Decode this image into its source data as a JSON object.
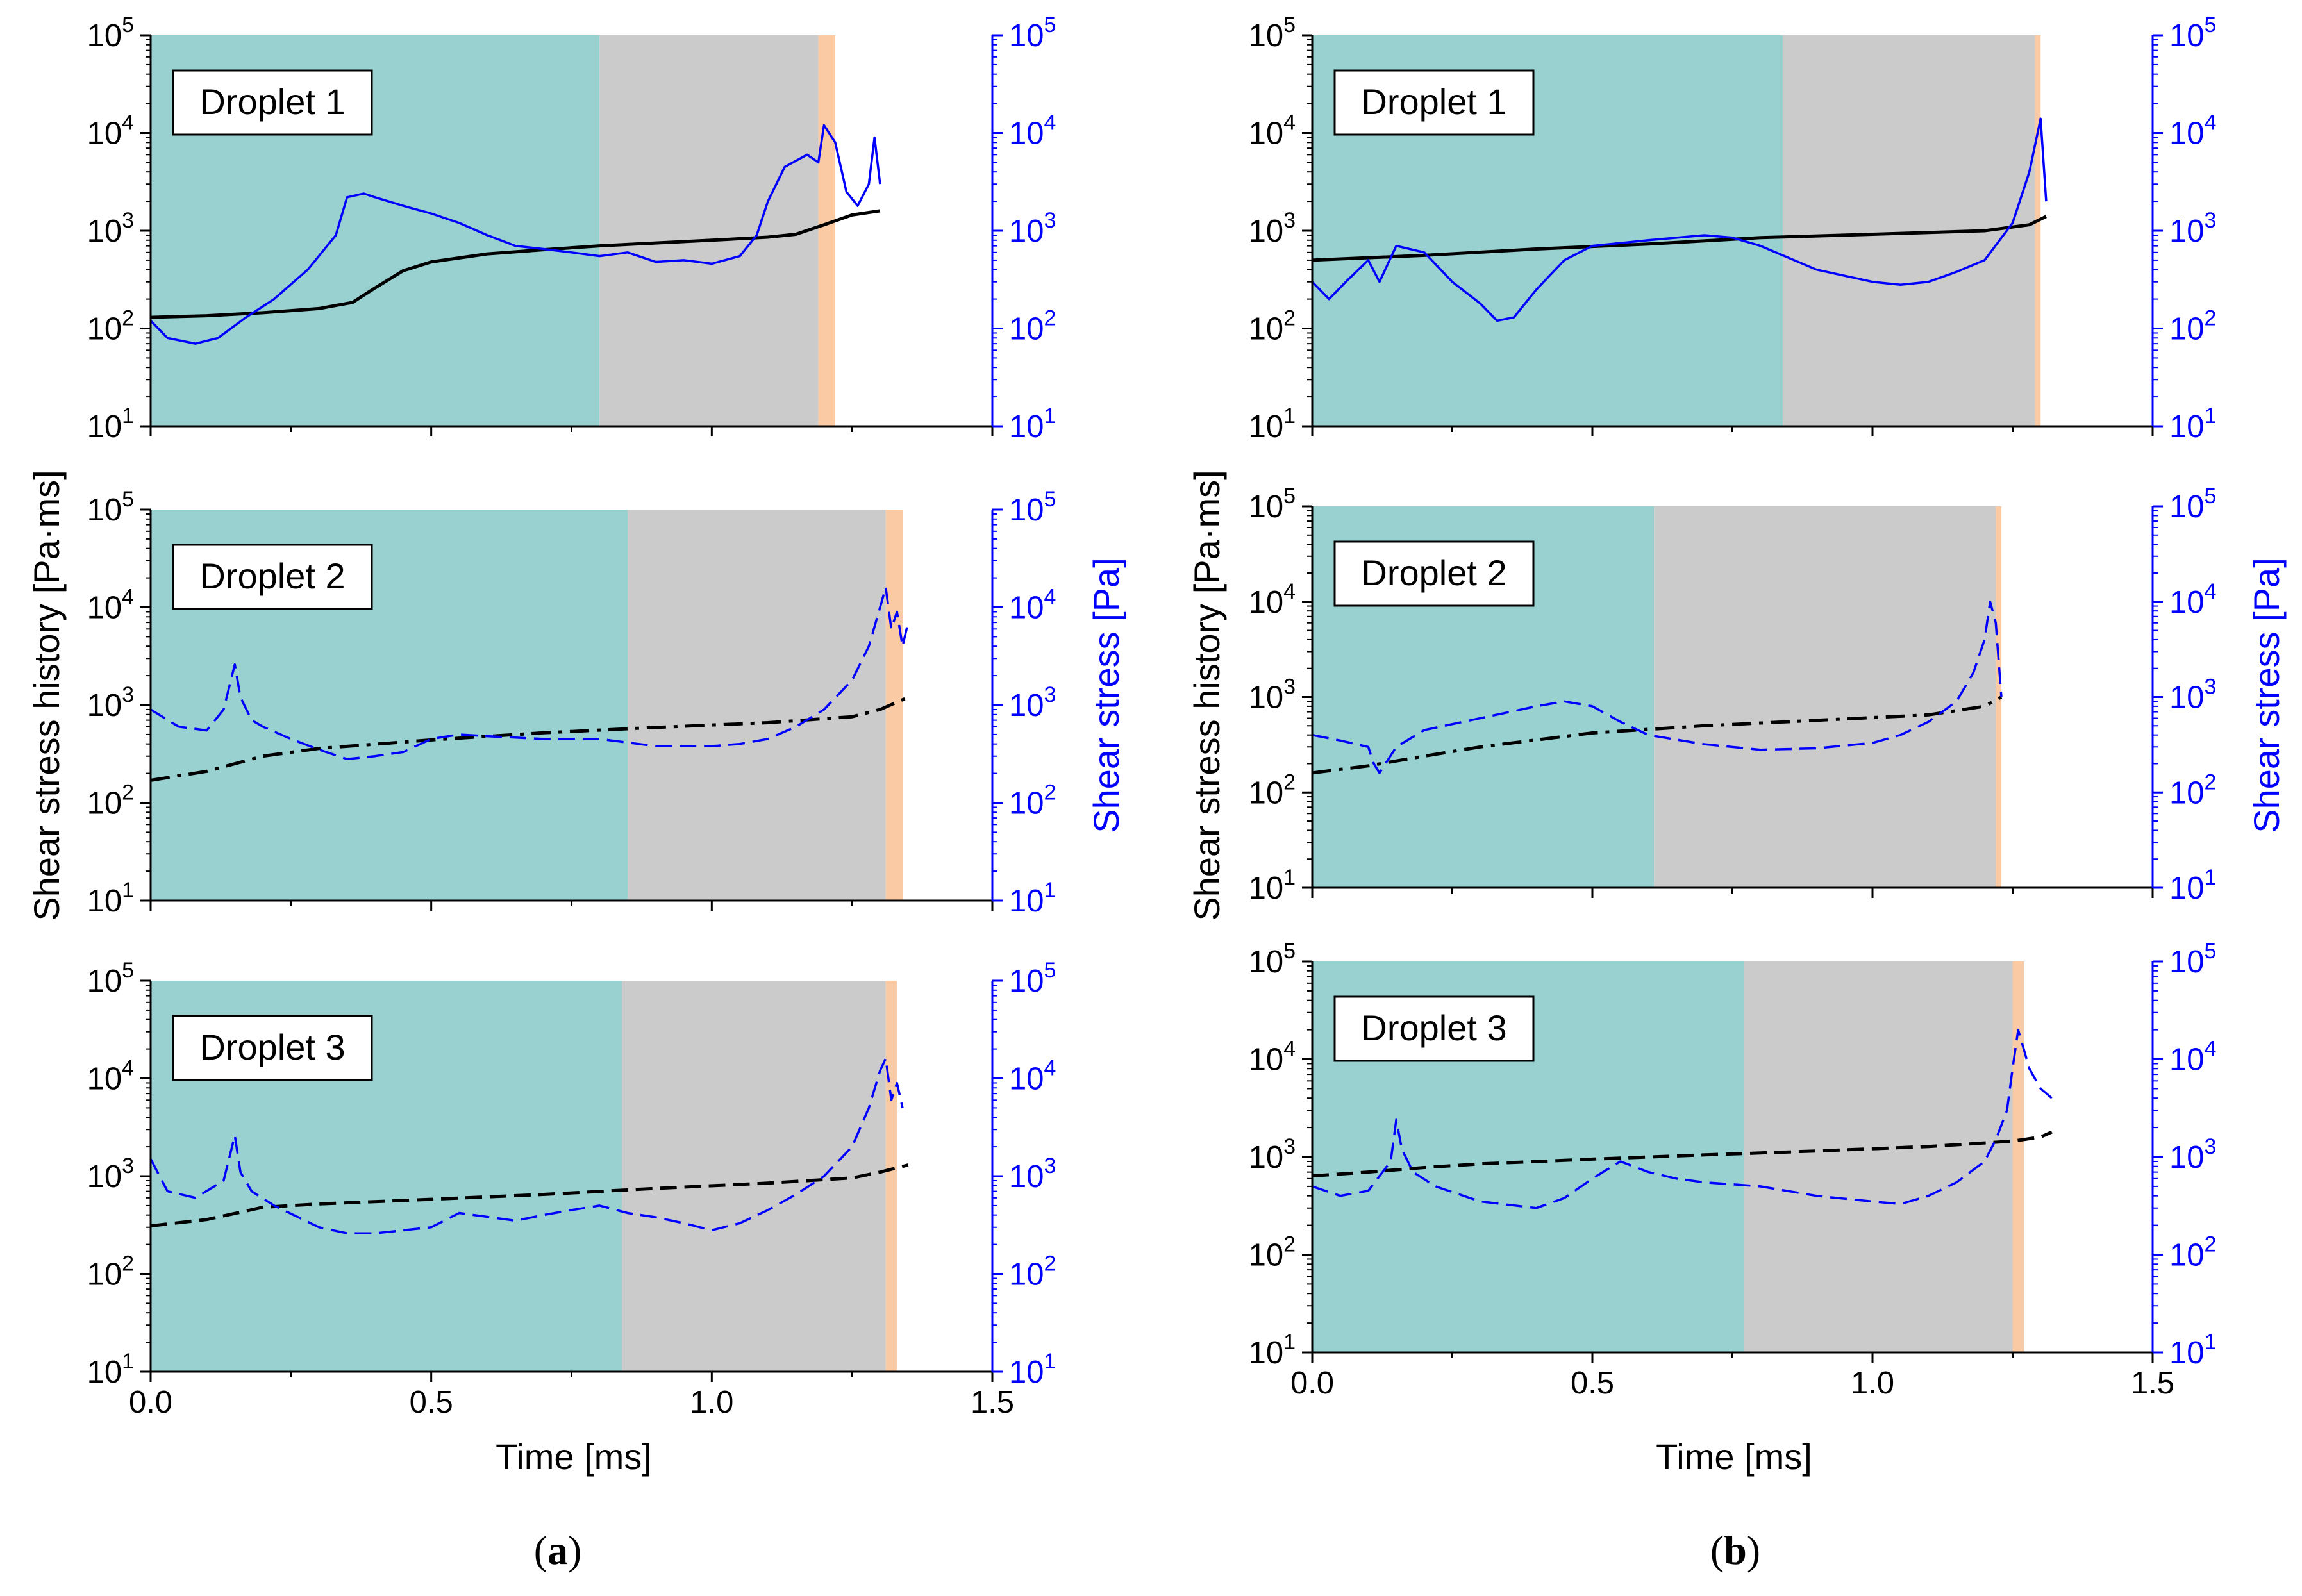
{
  "figure": {
    "panels": [
      "(a)",
      "(b)"
    ],
    "panel_labels": [
      {
        "open": "(",
        "letter": "a",
        "close": ")"
      },
      {
        "open": "(",
        "letter": "b",
        "close": ")"
      }
    ],
    "left_axis_title": "Shear stress history [Pa·ms]",
    "right_axis_title": "Shear stress [Pa]",
    "x_axis_title": "Time [ms]",
    "colors": {
      "teal": "#99d0d0",
      "gray": "#cbcbcb",
      "orange": "#f9caa4",
      "history": "#000000",
      "stress": "#0000ff"
    }
  },
  "chart_data": [
    {
      "type": "line",
      "panel": "a",
      "subplot": 1,
      "label": "Droplet 1",
      "xlim": [
        0,
        1.5
      ],
      "ylim": [
        10,
        100000
      ],
      "yscale": "log",
      "xticks": [
        "0.0",
        "0.5",
        "1.0",
        "1.5"
      ],
      "yticks": [
        10,
        100,
        1000,
        10000,
        100000
      ],
      "regions": [
        {
          "color": "teal",
          "from": 0,
          "to": 0.8
        },
        {
          "color": "gray",
          "from": 0.8,
          "to": 1.19
        },
        {
          "color": "orange",
          "from": 1.19,
          "to": 1.22
        }
      ],
      "series": [
        {
          "name": "Shear stress history",
          "axis": "left",
          "style": "solid",
          "color": "history",
          "x": [
            0,
            0.1,
            0.2,
            0.3,
            0.36,
            0.4,
            0.45,
            0.5,
            0.6,
            0.7,
            0.8,
            0.9,
            1.0,
            1.1,
            1.15,
            1.2,
            1.25,
            1.3
          ],
          "y": [
            130,
            135,
            145,
            160,
            185,
            260,
            390,
            480,
            580,
            640,
            700,
            750,
            800,
            860,
            920,
            1150,
            1450,
            1600
          ]
        },
        {
          "name": "Shear stress",
          "axis": "right",
          "style": "solid",
          "color": "stress",
          "x": [
            0,
            0.03,
            0.08,
            0.12,
            0.17,
            0.22,
            0.28,
            0.33,
            0.35,
            0.38,
            0.4,
            0.45,
            0.5,
            0.55,
            0.6,
            0.65,
            0.7,
            0.75,
            0.8,
            0.85,
            0.9,
            0.95,
            1.0,
            1.05,
            1.08,
            1.1,
            1.13,
            1.17,
            1.19,
            1.2,
            1.22,
            1.24,
            1.26,
            1.28,
            1.29,
            1.3
          ],
          "y": [
            120,
            80,
            70,
            80,
            130,
            200,
            400,
            900,
            2200,
            2400,
            2200,
            1800,
            1500,
            1200,
            900,
            700,
            650,
            600,
            550,
            600,
            480,
            500,
            460,
            550,
            900,
            2000,
            4500,
            6000,
            5000,
            12000,
            8000,
            2500,
            1800,
            3000,
            9000,
            3000
          ]
        }
      ]
    },
    {
      "type": "line",
      "panel": "a",
      "subplot": 2,
      "label": "Droplet 2",
      "xlim": [
        0,
        1.5
      ],
      "ylim": [
        10,
        100000
      ],
      "yscale": "log",
      "xticks": [
        "0.0",
        "0.5",
        "1.0",
        "1.5"
      ],
      "yticks": [
        10,
        100,
        1000,
        10000,
        100000
      ],
      "regions": [
        {
          "color": "teal",
          "from": 0,
          "to": 0.85
        },
        {
          "color": "gray",
          "from": 0.85,
          "to": 1.31
        },
        {
          "color": "orange",
          "from": 1.31,
          "to": 1.34
        }
      ],
      "series": [
        {
          "name": "Shear stress history",
          "axis": "left",
          "style": "dashdot",
          "color": "history",
          "x": [
            0,
            0.1,
            0.2,
            0.3,
            0.5,
            0.7,
            0.9,
            1.1,
            1.25,
            1.3,
            1.35
          ],
          "y": [
            170,
            210,
            300,
            360,
            440,
            520,
            590,
            660,
            760,
            900,
            1200
          ]
        },
        {
          "name": "Shear stress",
          "axis": "right",
          "style": "dashed",
          "color": "stress",
          "x": [
            0,
            0.05,
            0.1,
            0.13,
            0.15,
            0.16,
            0.18,
            0.2,
            0.25,
            0.3,
            0.35,
            0.4,
            0.45,
            0.5,
            0.55,
            0.6,
            0.7,
            0.8,
            0.9,
            1.0,
            1.05,
            1.1,
            1.15,
            1.2,
            1.25,
            1.28,
            1.3,
            1.31,
            1.32,
            1.33,
            1.34,
            1.35
          ],
          "y": [
            900,
            600,
            550,
            900,
            2600,
            1200,
            700,
            600,
            450,
            350,
            280,
            300,
            330,
            450,
            500,
            480,
            450,
            450,
            380,
            380,
            400,
            450,
            600,
            900,
            1800,
            4000,
            10000,
            16000,
            6000,
            9000,
            4000,
            7000
          ]
        }
      ]
    },
    {
      "type": "line",
      "panel": "a",
      "subplot": 3,
      "label": "Droplet 3",
      "xlim": [
        0,
        1.5
      ],
      "ylim": [
        10,
        100000
      ],
      "yscale": "log",
      "xticks": [
        "0.0",
        "0.5",
        "1.0",
        "1.5"
      ],
      "yticks": [
        10,
        100,
        1000,
        10000,
        100000
      ],
      "regions": [
        {
          "color": "teal",
          "from": 0,
          "to": 0.84
        },
        {
          "color": "gray",
          "from": 0.84,
          "to": 1.31
        },
        {
          "color": "orange",
          "from": 1.31,
          "to": 1.33
        }
      ],
      "series": [
        {
          "name": "Shear stress history",
          "axis": "left",
          "style": "dashed",
          "color": "history",
          "x": [
            0,
            0.1,
            0.2,
            0.3,
            0.5,
            0.7,
            0.9,
            1.1,
            1.25,
            1.3,
            1.35
          ],
          "y": [
            310,
            360,
            480,
            520,
            580,
            650,
            750,
            850,
            960,
            1100,
            1300
          ]
        },
        {
          "name": "Shear stress",
          "axis": "right",
          "style": "dashed",
          "color": "stress",
          "x": [
            0,
            0.03,
            0.08,
            0.13,
            0.15,
            0.16,
            0.18,
            0.22,
            0.3,
            0.35,
            0.4,
            0.5,
            0.55,
            0.65,
            0.7,
            0.75,
            0.8,
            0.85,
            0.9,
            0.95,
            1.0,
            1.05,
            1.1,
            1.15,
            1.2,
            1.25,
            1.28,
            1.3,
            1.31,
            1.32,
            1.33,
            1.34
          ],
          "y": [
            1500,
            700,
            600,
            900,
            2600,
            1100,
            700,
            500,
            300,
            260,
            260,
            300,
            420,
            350,
            400,
            450,
            500,
            420,
            380,
            330,
            280,
            330,
            450,
            650,
            1000,
            2000,
            5000,
            12000,
            16000,
            6000,
            9000,
            5000
          ]
        }
      ]
    },
    {
      "type": "line",
      "panel": "b",
      "subplot": 1,
      "label": "Droplet 1",
      "xlim": [
        0,
        1.5
      ],
      "ylim": [
        10,
        100000
      ],
      "yscale": "log",
      "xticks": [
        "0.0",
        "0.5",
        "1.0",
        "1.5"
      ],
      "yticks": [
        10,
        100,
        1000,
        10000,
        100000
      ],
      "regions": [
        {
          "color": "teal",
          "from": 0,
          "to": 0.84
        },
        {
          "color": "gray",
          "from": 0.84,
          "to": 1.29
        },
        {
          "color": "orange",
          "from": 1.29,
          "to": 1.3
        }
      ],
      "series": [
        {
          "name": "Shear stress history",
          "axis": "left",
          "style": "solid",
          "color": "history",
          "x": [
            0,
            0.2,
            0.4,
            0.6,
            0.8,
            1.0,
            1.2,
            1.28,
            1.31
          ],
          "y": [
            500,
            560,
            650,
            730,
            850,
            920,
            1000,
            1150,
            1400
          ]
        },
        {
          "name": "Shear stress",
          "axis": "right",
          "style": "solid",
          "color": "stress",
          "x": [
            0,
            0.03,
            0.06,
            0.1,
            0.12,
            0.15,
            0.2,
            0.25,
            0.3,
            0.33,
            0.36,
            0.4,
            0.45,
            0.5,
            0.6,
            0.7,
            0.75,
            0.8,
            0.9,
            1.0,
            1.05,
            1.1,
            1.15,
            1.2,
            1.25,
            1.28,
            1.3,
            1.31
          ],
          "y": [
            300,
            200,
            300,
            500,
            300,
            700,
            600,
            300,
            180,
            120,
            130,
            250,
            500,
            700,
            800,
            900,
            850,
            700,
            400,
            300,
            280,
            300,
            380,
            500,
            1200,
            4000,
            14000,
            2000
          ]
        }
      ]
    },
    {
      "type": "line",
      "panel": "b",
      "subplot": 2,
      "label": "Droplet 2",
      "xlim": [
        0,
        1.5
      ],
      "ylim": [
        10,
        100000
      ],
      "yscale": "log",
      "xticks": [
        "0.0",
        "0.5",
        "1.0",
        "1.5"
      ],
      "yticks": [
        10,
        100,
        1000,
        10000,
        100000
      ],
      "regions": [
        {
          "color": "teal",
          "from": 0,
          "to": 0.61
        },
        {
          "color": "gray",
          "from": 0.61,
          "to": 1.22
        },
        {
          "color": "orange",
          "from": 1.22,
          "to": 1.23
        }
      ],
      "series": [
        {
          "name": "Shear stress history",
          "axis": "left",
          "style": "dashdot",
          "color": "history",
          "x": [
            0,
            0.1,
            0.2,
            0.3,
            0.5,
            0.7,
            0.9,
            1.1,
            1.2,
            1.23
          ],
          "y": [
            160,
            190,
            240,
            300,
            420,
            500,
            570,
            650,
            800,
            1000
          ]
        },
        {
          "name": "Shear stress",
          "axis": "right",
          "style": "dashed",
          "color": "stress",
          "x": [
            0,
            0.05,
            0.1,
            0.11,
            0.12,
            0.15,
            0.2,
            0.3,
            0.4,
            0.45,
            0.5,
            0.55,
            0.6,
            0.7,
            0.8,
            0.9,
            1.0,
            1.05,
            1.1,
            1.15,
            1.18,
            1.2,
            1.21,
            1.22,
            1.23
          ],
          "y": [
            400,
            350,
            300,
            200,
            160,
            300,
            450,
            600,
            800,
            900,
            800,
            550,
            400,
            320,
            280,
            290,
            330,
            400,
            550,
            900,
            1800,
            4000,
            10000,
            6000,
            1000
          ]
        }
      ]
    },
    {
      "type": "line",
      "panel": "b",
      "subplot": 3,
      "label": "Droplet 3",
      "xlim": [
        0,
        1.5
      ],
      "ylim": [
        10,
        100000
      ],
      "yscale": "log",
      "xticks": [
        "0.0",
        "0.5",
        "1.0",
        "1.5"
      ],
      "yticks": [
        10,
        100,
        1000,
        10000,
        100000
      ],
      "regions": [
        {
          "color": "teal",
          "from": 0,
          "to": 0.77
        },
        {
          "color": "gray",
          "from": 0.77,
          "to": 1.25
        },
        {
          "color": "orange",
          "from": 1.25,
          "to": 1.27
        }
      ],
      "series": [
        {
          "name": "Shear stress history",
          "axis": "left",
          "style": "dashed",
          "color": "history",
          "x": [
            0,
            0.1,
            0.2,
            0.3,
            0.5,
            0.7,
            0.9,
            1.1,
            1.25,
            1.3,
            1.32
          ],
          "y": [
            640,
            700,
            780,
            850,
            950,
            1050,
            1150,
            1280,
            1450,
            1600,
            1800
          ]
        },
        {
          "name": "Shear stress",
          "axis": "right",
          "style": "dashed",
          "color": "stress",
          "x": [
            0,
            0.05,
            0.1,
            0.14,
            0.15,
            0.16,
            0.18,
            0.22,
            0.3,
            0.4,
            0.45,
            0.5,
            0.55,
            0.6,
            0.65,
            0.7,
            0.8,
            0.9,
            1.0,
            1.05,
            1.1,
            1.15,
            1.2,
            1.22,
            1.24,
            1.25,
            1.26,
            1.28,
            1.3,
            1.32
          ],
          "y": [
            500,
            400,
            450,
            900,
            2400,
            1200,
            700,
            500,
            350,
            300,
            380,
            600,
            900,
            700,
            600,
            550,
            500,
            400,
            350,
            330,
            400,
            550,
            900,
            1500,
            3000,
            8000,
            20000,
            8000,
            5000,
            4000
          ]
        }
      ]
    }
  ]
}
